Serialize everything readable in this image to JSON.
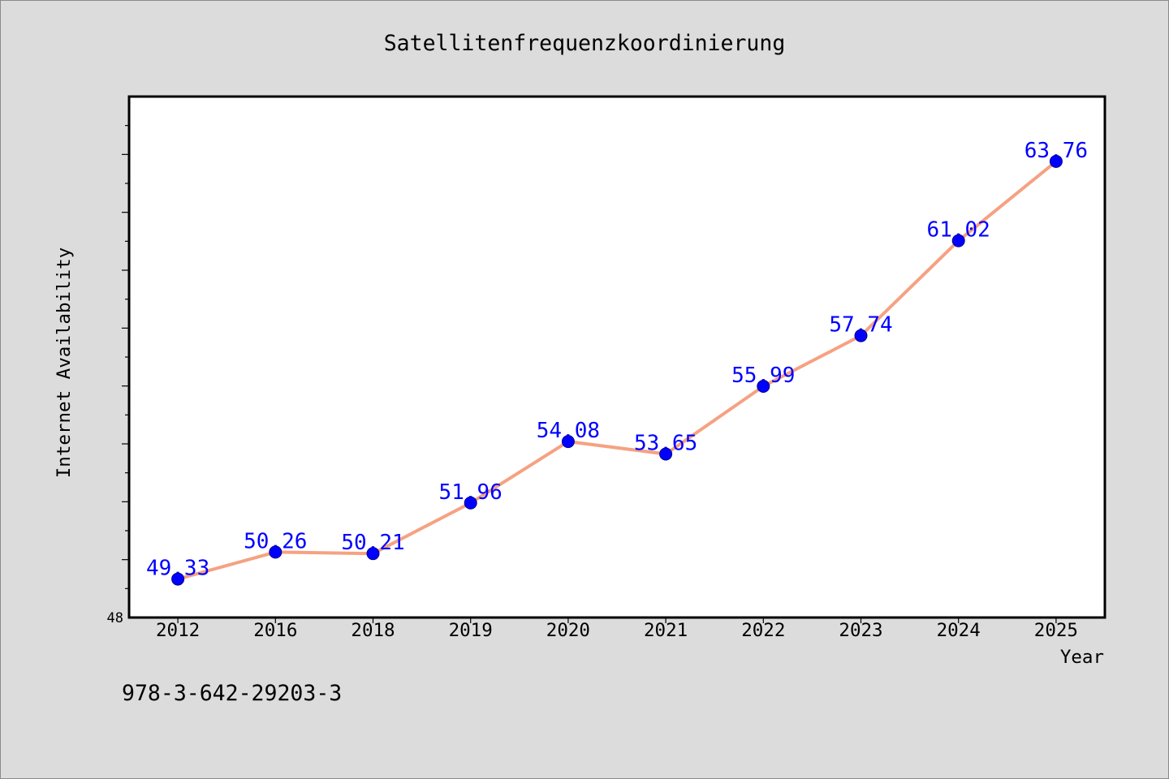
{
  "page": {
    "background": "#dcdcdc",
    "border_color": "#8a8a8a",
    "footer_text": "978-3-642-29203-3"
  },
  "chart_data": {
    "type": "line",
    "title": "Satellitenfrequenzkoordinierung",
    "xlabel": "Year",
    "ylabel": "Internet Availability",
    "categories": [
      "2012",
      "2016",
      "2018",
      "2019",
      "2020",
      "2021",
      "2022",
      "2023",
      "2024",
      "2025"
    ],
    "series": [
      {
        "values": [
          49.33,
          50.26,
          50.21,
          51.96,
          54.08,
          53.65,
          55.99,
          57.74,
          61.02,
          63.76
        ],
        "line_color": "#f5a282",
        "marker_color": "#0000ff",
        "marker_edge_color": "#00008b",
        "label_color": "#0000ff"
      }
    ],
    "ylim": [
      48,
      66
    ],
    "yticks": [
      48
    ],
    "ytick_labels": [
      "48"
    ],
    "ytick_minor_step": 1,
    "data_labels": true,
    "grid": false,
    "show_legend": false,
    "plot_background": "#ffffff",
    "axis_color": "#000000"
  }
}
